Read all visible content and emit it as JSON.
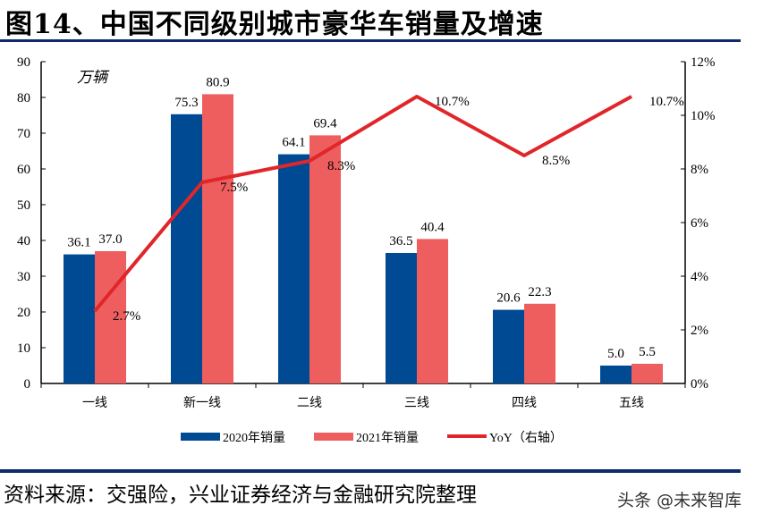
{
  "title": "图14、中国不同级别城市豪华车销量及增速",
  "source": "资料来源：交强险，兴业证券经济与金融研究院整理",
  "watermark": "头条 @未来智库",
  "chart_data": {
    "type": "bar",
    "unit_label": "万辆",
    "categories": [
      "一线",
      "新一线",
      "二线",
      "三线",
      "四线",
      "五线"
    ],
    "series": [
      {
        "name": "2020年销量",
        "type": "bar",
        "axis": "left",
        "color": "#004a93",
        "values": [
          36.1,
          75.3,
          64.1,
          36.5,
          20.6,
          5.0
        ],
        "labels": [
          "36.1",
          "75.3",
          "64.1",
          "36.5",
          "20.6",
          "5.0"
        ]
      },
      {
        "name": "2021年销量",
        "type": "bar",
        "axis": "left",
        "color": "#ef5e5f",
        "values": [
          37.0,
          80.9,
          69.4,
          40.4,
          22.3,
          5.5
        ],
        "labels": [
          "37.0",
          "80.9",
          "69.4",
          "40.4",
          "22.3",
          "5.5"
        ]
      },
      {
        "name": "YoY（右轴）",
        "type": "line",
        "axis": "right",
        "color": "#e0262a",
        "values": [
          2.7,
          7.5,
          8.3,
          10.7,
          8.5,
          10.7
        ],
        "labels": [
          "2.7%",
          "7.5%",
          "8.3%",
          "10.7%",
          "8.5%",
          "10.7%"
        ]
      }
    ],
    "y_left": {
      "range": [
        0,
        90
      ],
      "ticks": [
        "0",
        "10",
        "20",
        "30",
        "40",
        "50",
        "60",
        "70",
        "80",
        "90"
      ]
    },
    "y_right": {
      "range": [
        0,
        12
      ],
      "ticks": [
        "0%",
        "2%",
        "4%",
        "6%",
        "8%",
        "10%",
        "12%"
      ]
    },
    "grid": false,
    "legend": "bottom"
  }
}
